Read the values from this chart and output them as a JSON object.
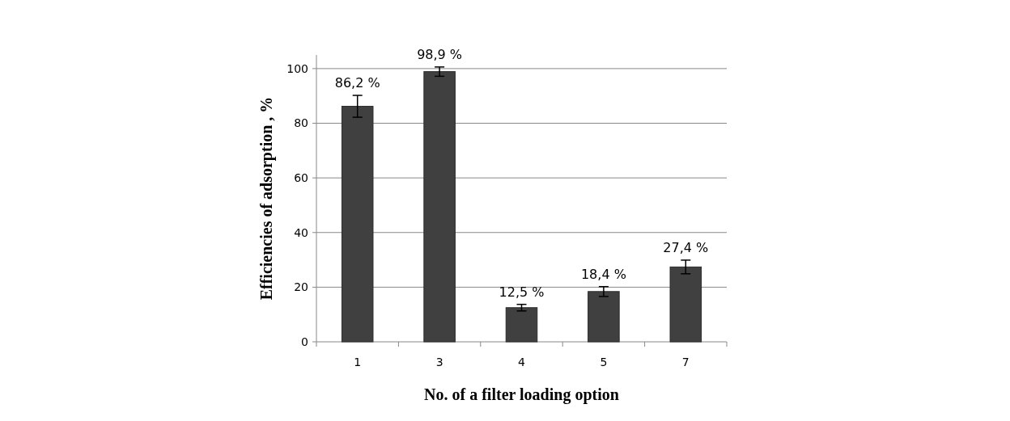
{
  "chart_data": {
    "type": "bar",
    "xlabel": "No. of a filter loading option",
    "ylabel": "Efficiencies of adsorption , %",
    "categories": [
      "1",
      "3",
      "4",
      "5",
      "7"
    ],
    "values": [
      86.2,
      98.9,
      12.5,
      18.4,
      27.4
    ],
    "errors": [
      4,
      1.7,
      1.2,
      1.8,
      2.5
    ],
    "value_labels": [
      "86,2 %",
      "98,9 %",
      "12,5 %",
      "18,4 %",
      "27,4 %"
    ],
    "color": "#404040",
    "ylim": [
      0,
      105
    ],
    "yticks": [
      0,
      20,
      40,
      60,
      80,
      100
    ],
    "grid": "y"
  }
}
